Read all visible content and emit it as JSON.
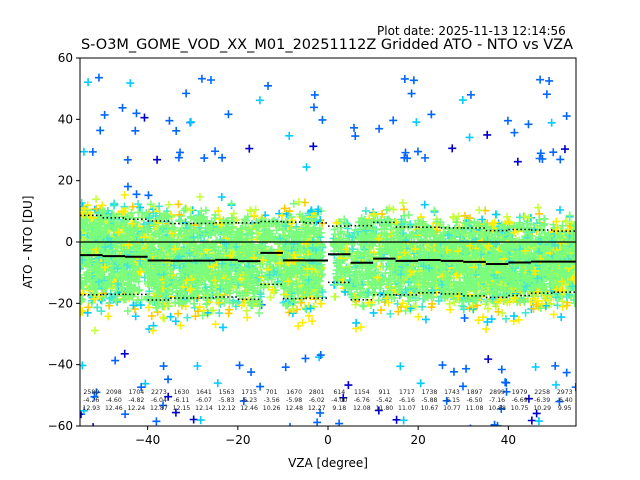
{
  "header": {
    "plot_date": "Plot date: 2025-11-13 12:14:56"
  },
  "chart_data": {
    "type": "scatter",
    "title": "S-O3M_GOME_VOD_XX_M01_20251112Z Gridded ATO - NTO vs VZA",
    "xlabel": "VZA [degree]",
    "ylabel": "ATO - NTO [DU]",
    "xlim": [
      -55,
      55
    ],
    "ylim": [
      -60,
      60
    ],
    "xticks": [
      -40,
      -20,
      0,
      20,
      40
    ],
    "xtick_labels": [
      "−40",
      "−20",
      "0",
      "20",
      "40"
    ],
    "yticks": [
      60,
      40,
      20,
      0,
      -20,
      -40,
      -60
    ],
    "ytick_labels": [
      "60",
      "40",
      "20",
      "0",
      "−20",
      "−40",
      "−60"
    ],
    "grid": false,
    "marker": "+",
    "colors": [
      "#0000cc",
      "#0066ff",
      "#00ccff",
      "#44e8cc",
      "#7cfc7c",
      "#c8ff3c",
      "#ffee00",
      "#ffcc00"
    ],
    "zero_line": 0,
    "bins": [
      {
        "center": -52.5,
        "count": "2580",
        "mean": "-4.26",
        "std": "12.93"
      },
      {
        "center": -47.5,
        "count": "2098",
        "mean": "-4.60",
        "std": "12.46"
      },
      {
        "center": -42.5,
        "count": "1704",
        "mean": "-4.82",
        "std": "12.24"
      },
      {
        "center": -37.5,
        "count": "2273",
        "mean": "-6.04",
        "std": "12.87"
      },
      {
        "center": -32.5,
        "count": "1630",
        "mean": "-6.11",
        "std": "12.15"
      },
      {
        "center": -27.5,
        "count": "1641",
        "mean": "-6.07",
        "std": "12.14"
      },
      {
        "center": -22.5,
        "count": "1563",
        "mean": "-5.83",
        "std": "12.12"
      },
      {
        "center": -17.5,
        "count": "1715",
        "mean": "-6.23",
        "std": "12.46"
      },
      {
        "center": -12.5,
        "count": "701",
        "mean": "-3.56",
        "std": "10.26"
      },
      {
        "center": -7.5,
        "count": "1670",
        "mean": "-5.98",
        "std": "12.48"
      },
      {
        "center": -2.5,
        "count": "2801",
        "mean": "-6.02",
        "std": "12.27"
      },
      {
        "center": 2.5,
        "count": "614",
        "mean": "-4.00",
        "std": "9.18"
      },
      {
        "center": 7.5,
        "count": "1154",
        "mean": "-6.76",
        "std": "12.08"
      },
      {
        "center": 12.5,
        "count": "911",
        "mean": "-5.42",
        "std": "11.80"
      },
      {
        "center": 17.5,
        "count": "1717",
        "mean": "-6.16",
        "std": "11.07"
      },
      {
        "center": 22.5,
        "count": "1738",
        "mean": "-5.88",
        "std": "10.67"
      },
      {
        "center": 27.5,
        "count": "1743",
        "mean": "-6.15",
        "std": "10.77"
      },
      {
        "center": 32.5,
        "count": "1897",
        "mean": "-6.50",
        "std": "11.08"
      },
      {
        "center": 37.5,
        "count": "2899",
        "mean": "-7.16",
        "std": "10.88"
      },
      {
        "center": 42.5,
        "count": "1979",
        "mean": "-6.69",
        "std": "10.75"
      },
      {
        "center": 47.5,
        "count": "2258",
        "mean": "-6.39",
        "std": "10.29"
      },
      {
        "center": 52.5,
        "count": "2973",
        "mean": "-6.40",
        "std": "9.95"
      }
    ]
  }
}
